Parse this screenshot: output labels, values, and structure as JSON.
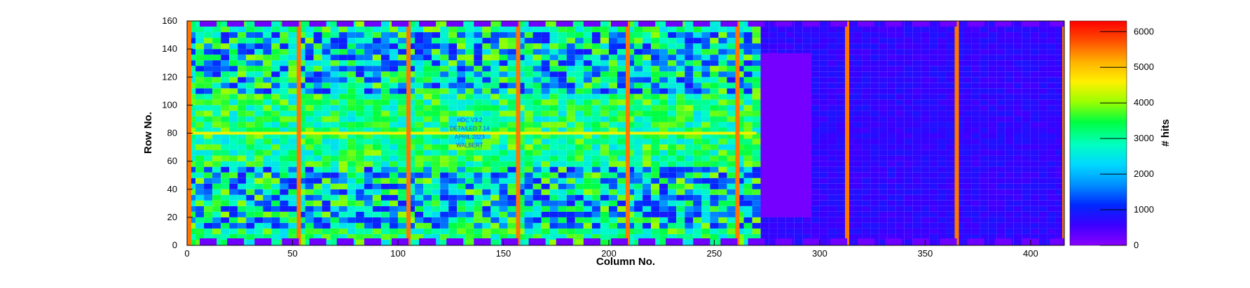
{
  "chart_data": {
    "type": "heatmap",
    "title": "",
    "xlabel": "Column No.",
    "ylabel": "Row No.",
    "zlabel": "# hits",
    "xlim": [
      0,
      416
    ],
    "ylim": [
      0,
      160
    ],
    "zlim": [
      0,
      6300
    ],
    "x_ticks": [
      0,
      50,
      100,
      150,
      200,
      250,
      300,
      350,
      400
    ],
    "y_ticks": [
      0,
      20,
      40,
      60,
      80,
      100,
      120,
      140,
      160
    ],
    "z_ticks": [
      0,
      1000,
      2000,
      3000,
      4000,
      5000,
      6000
    ],
    "colormap": [
      "#8a00ff",
      "#3a00ff",
      "#0028ff",
      "#0090ff",
      "#00d8ff",
      "#00ffc0",
      "#00ff40",
      "#9cff00",
      "#fff000",
      "#ffb000",
      "#ff5000",
      "#ff0000"
    ],
    "typical_values": {
      "left_region_cols_0_270": 3300,
      "right_region_cols_270_416": 700,
      "top_bottom_pad_blocks": 200,
      "hot_columns": 5500,
      "central_row_80": 4500
    },
    "hot_columns": [
      0,
      52,
      104,
      156,
      208,
      260,
      312,
      364,
      415
    ],
    "pad_rows": [
      0,
      156
    ],
    "labels_in_plot": [
      "HDC V3.2",
      "DETAILED 7.14",
      "APRIL 2023",
      "WALBERT"
    ]
  }
}
